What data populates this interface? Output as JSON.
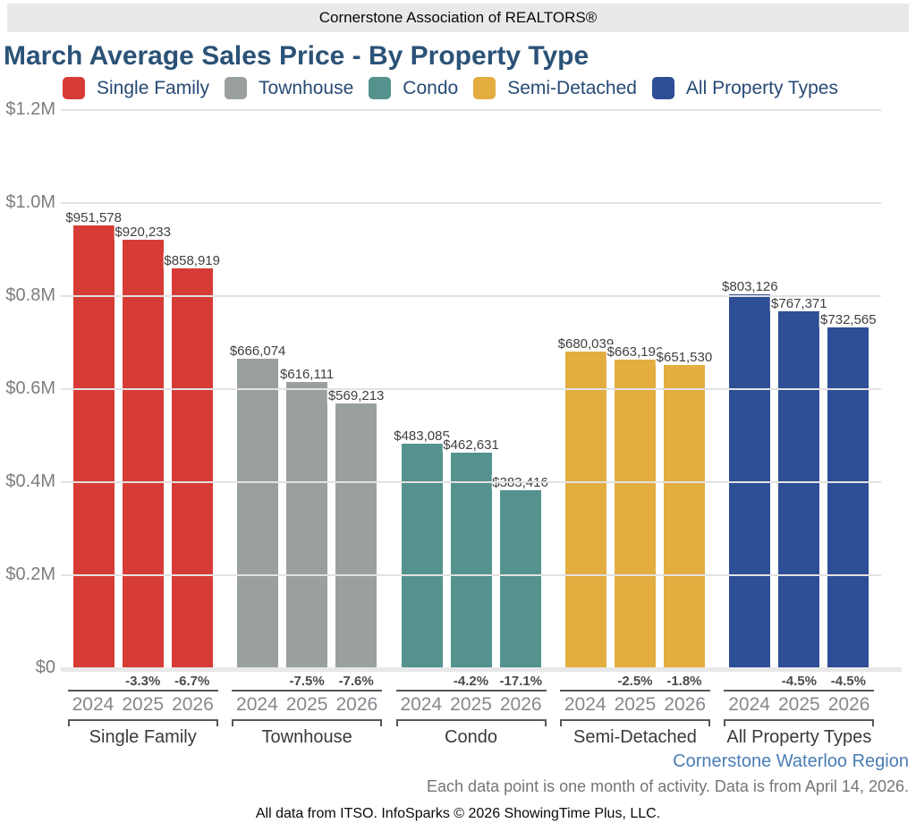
{
  "header": {
    "org": "Cornerstone Association of REALTORS®"
  },
  "title": "March Average Sales Price - By Property Type",
  "legend": [
    {
      "label": "Single Family",
      "color": "#d63c35"
    },
    {
      "label": "Townhouse",
      "color": "#9aa09d"
    },
    {
      "label": "Condo",
      "color": "#55928e"
    },
    {
      "label": "Semi-Detached",
      "color": "#e3ad40"
    },
    {
      "label": "All Property Types",
      "color": "#2e4e96"
    }
  ],
  "chart_data": {
    "type": "bar",
    "title": "March Average Sales Price - By Property Type",
    "xlabel": "",
    "ylabel": "Average Sales Price",
    "ylim": [
      0,
      1200000
    ],
    "grid": true,
    "legend_position": "top",
    "ytick_values": [
      1200000,
      1000000,
      800000,
      600000,
      400000,
      200000,
      0
    ],
    "ytick_labels": [
      "$1.2M",
      "$1.0M",
      "$0.8M",
      "$0.6M",
      "$0.4M",
      "$0.2M",
      "$0"
    ],
    "years": [
      "2024",
      "2025",
      "2026"
    ],
    "series": [
      {
        "name": "Single Family",
        "color": "#d63c35",
        "values": [
          951578,
          920233,
          858919
        ],
        "value_labels": [
          "$951,578",
          "$920,233",
          "$858,919"
        ],
        "pct_change": [
          "",
          "-3.3%",
          "-6.7%"
        ]
      },
      {
        "name": "Townhouse",
        "color": "#9aa09d",
        "values": [
          666074,
          616111,
          569213
        ],
        "value_labels": [
          "$666,074",
          "$616,111",
          "$569,213"
        ],
        "pct_change": [
          "",
          "-7.5%",
          "-7.6%"
        ]
      },
      {
        "name": "Condo",
        "color": "#55928e",
        "values": [
          483085,
          462631,
          383416
        ],
        "value_labels": [
          "$483,085",
          "$462,631",
          "$383,416"
        ],
        "pct_change": [
          "",
          "-4.2%",
          "-17.1%"
        ]
      },
      {
        "name": "Semi-Detached",
        "color": "#e3ad40",
        "values": [
          680039,
          663196,
          651530
        ],
        "value_labels": [
          "$680,039",
          "$663,196",
          "$651,530"
        ],
        "pct_change": [
          "",
          "-2.5%",
          "-1.8%"
        ]
      },
      {
        "name": "All Property Types",
        "color": "#2e4e96",
        "values": [
          803126,
          767371,
          732565
        ],
        "value_labels": [
          "$803,126",
          "$767,371",
          "$732,565"
        ],
        "pct_change": [
          "",
          "-4.5%",
          "-4.5%"
        ]
      }
    ]
  },
  "footer": {
    "region": "Cornerstone Waterloo Region",
    "note": "Each data point is one month of activity. Data is from April 14, 2026.",
    "attribution": "All data from ITSO. InfoSparks © 2026 ShowingTime Plus, LLC."
  }
}
